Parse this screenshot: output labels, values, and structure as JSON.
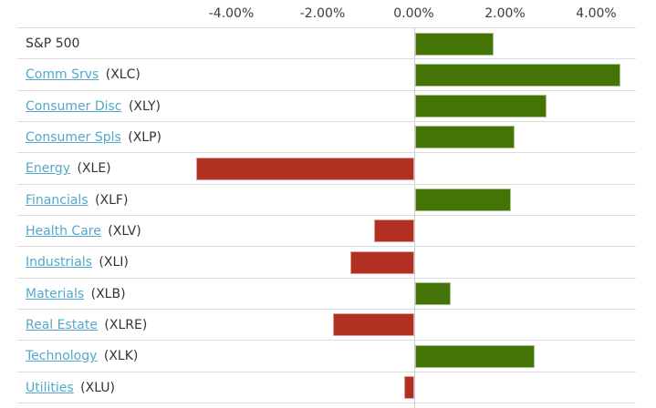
{
  "chart_data": {
    "type": "bar",
    "orientation": "horizontal",
    "title": "",
    "unit": "%",
    "grid": "horizontal row dividers + vertical zero line",
    "legend": "none",
    "xlim": [
      -8.7,
      4.9
    ],
    "x_ticks": [
      {
        "label": "-4.00%",
        "pct": -4
      },
      {
        "label": "-2.00%",
        "pct": -2
      },
      {
        "label": "0.00%",
        "pct": 0
      },
      {
        "label": "2.00%",
        "pct": 2
      },
      {
        "label": "4.00%",
        "pct": 4
      }
    ],
    "rows": [
      {
        "label": "S&P 500",
        "ticker": "",
        "value_pct": 1.73,
        "linked": false
      },
      {
        "label": "Comm Srvs",
        "ticker": "(XLC)",
        "value_pct": 4.5,
        "linked": true
      },
      {
        "label": "Consumer Disc",
        "ticker": "(XLY)",
        "value_pct": 2.89,
        "linked": true
      },
      {
        "label": "Consumer Spls",
        "ticker": "(XLP)",
        "value_pct": 2.18,
        "linked": true
      },
      {
        "label": "Energy",
        "ticker": "(XLE)",
        "value_pct": -4.77,
        "linked": true
      },
      {
        "label": "Financials",
        "ticker": "(XLF)",
        "value_pct": 2.1,
        "linked": true
      },
      {
        "label": "Health Care",
        "ticker": "(XLV)",
        "value_pct": -0.87,
        "linked": true
      },
      {
        "label": "Industrials",
        "ticker": "(XLI)",
        "value_pct": -1.39,
        "linked": true
      },
      {
        "label": "Materials",
        "ticker": "(XLB)",
        "value_pct": 0.78,
        "linked": true
      },
      {
        "label": "Real Estate",
        "ticker": "(XLRE)",
        "value_pct": -1.77,
        "linked": true
      },
      {
        "label": "Technology",
        "ticker": "(XLK)",
        "value_pct": 2.63,
        "linked": true
      },
      {
        "label": "Utilities",
        "ticker": "(XLU)",
        "value_pct": -0.21,
        "linked": true
      }
    ]
  },
  "colors": {
    "positive_bar": "#447405",
    "negative_bar": "#b23022",
    "link": "#54a8cc",
    "text": "#333333",
    "axis_text": "#3c3c3c",
    "gridline": "#dcdcdc",
    "zero_line": "#cdcdcd"
  }
}
